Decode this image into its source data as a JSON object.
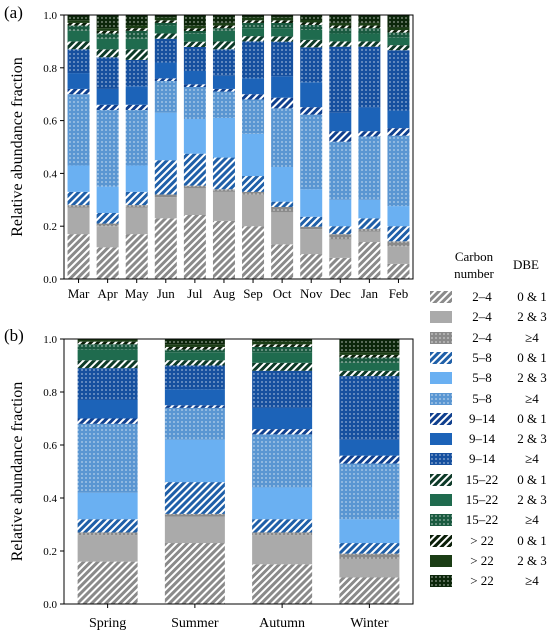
{
  "panel_labels": [
    "(a)",
    "(b)"
  ],
  "legend": {
    "header_carbon": "Carbon number",
    "header_dbe": "DBE",
    "items": [
      {
        "carbon": "2–4",
        "dbe": "0 & 1",
        "color": "#8a8a8a",
        "pattern": "hatch"
      },
      {
        "carbon": "2–4",
        "dbe": "2 & 3",
        "color": "#aaaaaa",
        "pattern": "solid"
      },
      {
        "carbon": "2–4",
        "dbe": "≥4",
        "color": "#8a8a8a",
        "pattern": "dots"
      },
      {
        "carbon": "5–8",
        "dbe": "0 & 1",
        "color": "#1f5fa8",
        "pattern": "hatch"
      },
      {
        "carbon": "5–8",
        "dbe": "2 & 3",
        "color": "#6ab0f2",
        "pattern": "solid"
      },
      {
        "carbon": "5–8",
        "dbe": "≥4",
        "color": "#5a96d2",
        "pattern": "dots"
      },
      {
        "carbon": "9–14",
        "dbe": "0 & 1",
        "color": "#0f3f8e",
        "pattern": "hatch"
      },
      {
        "carbon": "9–14",
        "dbe": "2 & 3",
        "color": "#1c63b8",
        "pattern": "solid"
      },
      {
        "carbon": "9–14",
        "dbe": "≥4",
        "color": "#16509f",
        "pattern": "dots"
      },
      {
        "carbon": "15–22",
        "dbe": "0 & 1",
        "color": "#0d3a28",
        "pattern": "hatch"
      },
      {
        "carbon": "15–22",
        "dbe": "2 & 3",
        "color": "#1f6b4e",
        "pattern": "solid"
      },
      {
        "carbon": "15–22",
        "dbe": "≥4",
        "color": "#1a5a40",
        "pattern": "dots"
      },
      {
        "carbon": "> 22",
        "dbe": "0 & 1",
        "color": "#0a1e08",
        "pattern": "hatch"
      },
      {
        "carbon": "> 22",
        "dbe": "2 & 3",
        "color": "#1b3d15",
        "pattern": "solid"
      },
      {
        "carbon": "> 22",
        "dbe": "≥4",
        "color": "#0c260a",
        "pattern": "dots"
      }
    ]
  },
  "chart_data": [
    {
      "type": "bar",
      "stacked": true,
      "panel": "(a)",
      "ylabel": "Relative abundance fraction",
      "ylim": [
        0,
        1.0
      ],
      "yticks": [
        "0.0",
        "0.2",
        "0.4",
        "0.6",
        "0.8",
        "1.0"
      ],
      "categories": [
        "Mar",
        "Apr",
        "May",
        "Jun",
        "Jul",
        "Aug",
        "Sep",
        "Oct",
        "Nov",
        "Dec",
        "Jan",
        "Feb"
      ],
      "series": [
        {
          "values": [
            0.17,
            0.12,
            0.17,
            0.23,
            0.24,
            0.22,
            0.2,
            0.13,
            0.1,
            0.08,
            0.14,
            0.06
          ]
        },
        {
          "values": [
            0.1,
            0.08,
            0.1,
            0.08,
            0.1,
            0.11,
            0.12,
            0.12,
            0.1,
            0.07,
            0.04,
            0.07
          ]
        },
        {
          "values": [
            0.01,
            0.01,
            0.01,
            0.01,
            0.01,
            0.01,
            0.01,
            0.02,
            0.01,
            0.02,
            0.01,
            0.02
          ]
        },
        {
          "values": [
            0.05,
            0.04,
            0.05,
            0.13,
            0.12,
            0.12,
            0.06,
            0.02,
            0.04,
            0.03,
            0.04,
            0.06
          ]
        },
        {
          "values": [
            0.1,
            0.1,
            0.1,
            0.18,
            0.13,
            0.15,
            0.16,
            0.13,
            0.11,
            0.1,
            0.07,
            0.08
          ]
        },
        {
          "values": [
            0.27,
            0.29,
            0.21,
            0.12,
            0.12,
            0.1,
            0.13,
            0.22,
            0.3,
            0.22,
            0.24,
            0.28
          ]
        },
        {
          "values": [
            0.02,
            0.02,
            0.02,
            0.01,
            0.01,
            0.01,
            0.02,
            0.04,
            0.03,
            0.04,
            0.02,
            0.03
          ]
        },
        {
          "values": [
            0.06,
            0.06,
            0.07,
            0.06,
            0.05,
            0.05,
            0.06,
            0.08,
            0.1,
            0.07,
            0.09,
            0.07
          ]
        },
        {
          "values": [
            0.09,
            0.12,
            0.1,
            0.09,
            0.09,
            0.1,
            0.14,
            0.13,
            0.14,
            0.25,
            0.23,
            0.24
          ]
        },
        {
          "values": [
            0.03,
            0.03,
            0.04,
            0.02,
            0.02,
            0.03,
            0.02,
            0.02,
            0.03,
            0.02,
            0.02,
            0.02
          ]
        },
        {
          "values": [
            0.04,
            0.04,
            0.04,
            0.03,
            0.03,
            0.04,
            0.03,
            0.03,
            0.04,
            0.03,
            0.03,
            0.03
          ]
        },
        {
          "values": [
            0.02,
            0.02,
            0.03,
            0.01,
            0.01,
            0.01,
            0.02,
            0.02,
            0.02,
            0.02,
            0.02,
            0.02
          ]
        },
        {
          "values": [
            0.01,
            0.01,
            0.01,
            0.01,
            0.01,
            0.01,
            0.01,
            0.01,
            0.01,
            0.01,
            0.01,
            0.01
          ]
        },
        {
          "values": [
            0.01,
            0.01,
            0.01,
            0.01,
            0.01,
            0.01,
            0.01,
            0.01,
            0.01,
            0.01,
            0.01,
            0.01
          ]
        },
        {
          "values": [
            0.02,
            0.05,
            0.04,
            0.01,
            0.04,
            0.03,
            0.01,
            0.01,
            0.02,
            0.03,
            0.03,
            0.05
          ]
        }
      ]
    },
    {
      "type": "bar",
      "stacked": true,
      "panel": "(b)",
      "ylabel": "Relative abundance fraction",
      "ylim": [
        0,
        1.0
      ],
      "yticks": [
        "0.0",
        "0.2",
        "0.4",
        "0.6",
        "0.8",
        "1.0"
      ],
      "categories": [
        "Spring",
        "Summer",
        "Autumn",
        "Winter"
      ],
      "series": [
        {
          "values": [
            0.16,
            0.23,
            0.15,
            0.1
          ]
        },
        {
          "values": [
            0.1,
            0.1,
            0.11,
            0.07
          ]
        },
        {
          "values": [
            0.01,
            0.01,
            0.01,
            0.02
          ]
        },
        {
          "values": [
            0.05,
            0.12,
            0.05,
            0.04
          ]
        },
        {
          "values": [
            0.1,
            0.16,
            0.12,
            0.09
          ]
        },
        {
          "values": [
            0.26,
            0.12,
            0.2,
            0.21
          ]
        },
        {
          "values": [
            0.02,
            0.01,
            0.02,
            0.03
          ]
        },
        {
          "values": [
            0.07,
            0.06,
            0.08,
            0.06
          ]
        },
        {
          "values": [
            0.12,
            0.09,
            0.14,
            0.24
          ]
        },
        {
          "values": [
            0.03,
            0.02,
            0.03,
            0.02
          ]
        },
        {
          "values": [
            0.04,
            0.03,
            0.04,
            0.03
          ]
        },
        {
          "values": [
            0.02,
            0.01,
            0.02,
            0.02
          ]
        },
        {
          "values": [
            0.01,
            0.01,
            0.01,
            0.01
          ]
        },
        {
          "values": [
            0.01,
            0.01,
            0.01,
            0.01
          ]
        },
        {
          "values": [
            0.0,
            0.02,
            0.01,
            0.05
          ]
        }
      ]
    }
  ]
}
